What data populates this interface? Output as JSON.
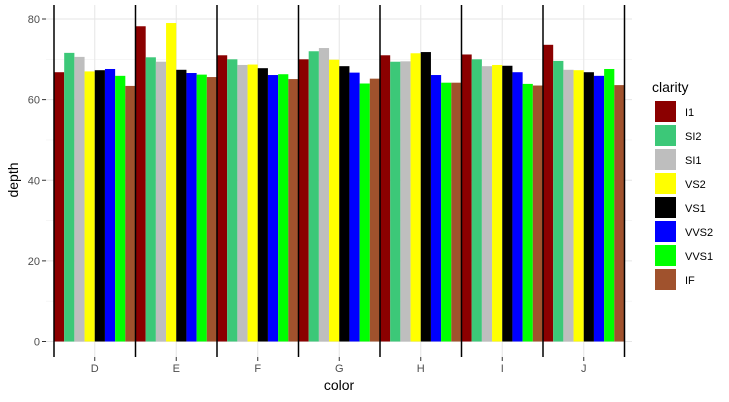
{
  "chart_data": {
    "type": "bar",
    "xlabel": "color",
    "ylabel": "depth",
    "ylim": [
      0,
      80
    ],
    "yticks": [
      0,
      20,
      40,
      60,
      80
    ],
    "grid": true,
    "legend_position": "right",
    "legend_title": "clarity",
    "categories": [
      "D",
      "E",
      "F",
      "G",
      "H",
      "I",
      "J"
    ],
    "series": [
      {
        "name": "I1",
        "color": "#8B0000",
        "values": [
          66.8,
          78.2,
          71.0,
          70.0,
          71.0,
          71.2,
          73.6
        ]
      },
      {
        "name": "SI2",
        "color": "#3CC878",
        "values": [
          71.6,
          70.5,
          70.0,
          72.0,
          69.4,
          70.0,
          69.6
        ]
      },
      {
        "name": "SI1",
        "color": "#BEBEBE",
        "values": [
          70.6,
          69.4,
          68.6,
          72.8,
          69.5,
          68.3,
          67.4
        ]
      },
      {
        "name": "VS2",
        "color": "#FFFF00",
        "values": [
          67.0,
          79.0,
          68.7,
          69.9,
          71.5,
          68.6,
          67.3
        ]
      },
      {
        "name": "VS1",
        "color": "#000000",
        "values": [
          67.3,
          67.4,
          67.8,
          68.3,
          71.8,
          68.4,
          66.8
        ]
      },
      {
        "name": "VVS2",
        "color": "#0000FF",
        "values": [
          67.6,
          66.6,
          66.1,
          66.7,
          66.1,
          66.8,
          65.9
        ]
      },
      {
        "name": "VVS1",
        "color": "#00FF00",
        "values": [
          65.9,
          66.2,
          66.3,
          64.0,
          64.2,
          63.9,
          67.6
        ]
      },
      {
        "name": "IF",
        "color": "#A0522D",
        "values": [
          63.4,
          65.6,
          65.1,
          65.2,
          64.2,
          63.5,
          63.6
        ]
      }
    ]
  }
}
